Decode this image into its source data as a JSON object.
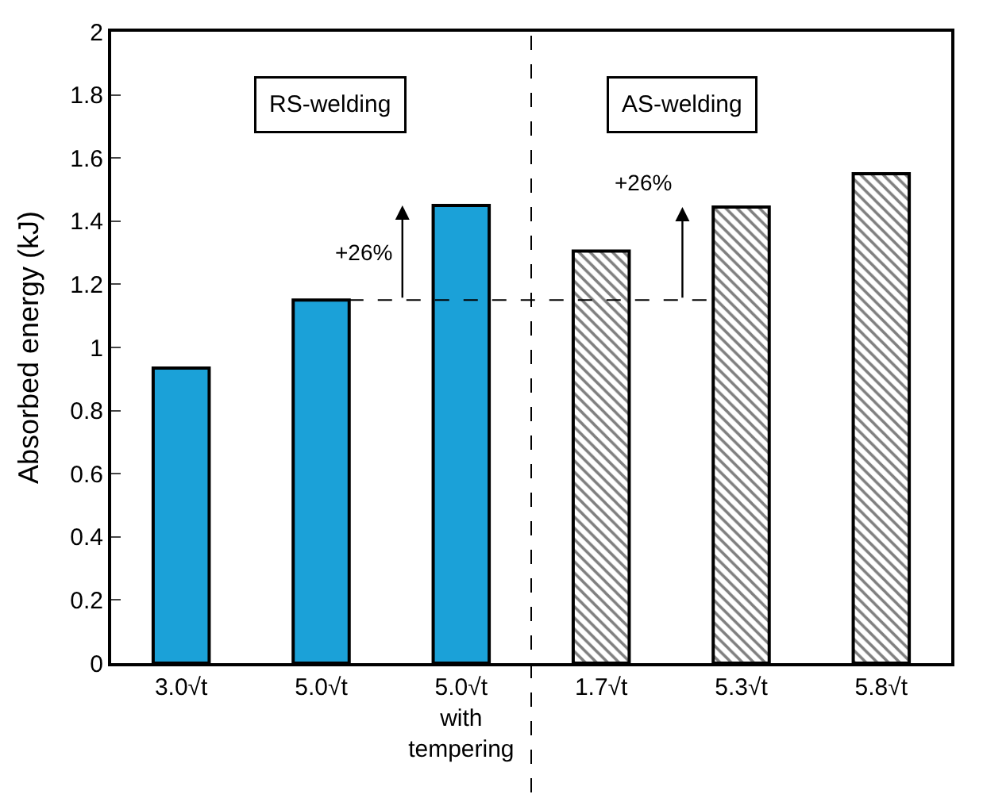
{
  "chart_data": {
    "type": "bar",
    "ylabel": "Absorbed energy (kJ)",
    "categories": [
      "3.0√t",
      "5.0√t",
      "5.0√t\nwith\ntempering",
      "1.7√t",
      "5.3√t",
      "5.8√t"
    ],
    "series": [
      {
        "color": "#1ba1d8",
        "values": [
          0.935,
          1.15,
          1.45,
          null,
          null,
          null
        ]
      },
      {
        "color": "#000000",
        "values": [
          null,
          null,
          null,
          1.305,
          1.445,
          1.55
        ]
      }
    ],
    "ylim": [
      0,
      2
    ],
    "yticks": [
      0,
      0.2,
      0.4,
      0.6,
      0.8,
      1,
      1.2,
      1.4,
      1.6,
      1.8,
      2
    ],
    "ref_lines": [
      {
        "axis": "y",
        "value": 1.15,
        "line_style": "dashed"
      }
    ],
    "annotations": [
      "RS-welding",
      "AS-welding",
      "+26%",
      "+26%"
    ]
  }
}
